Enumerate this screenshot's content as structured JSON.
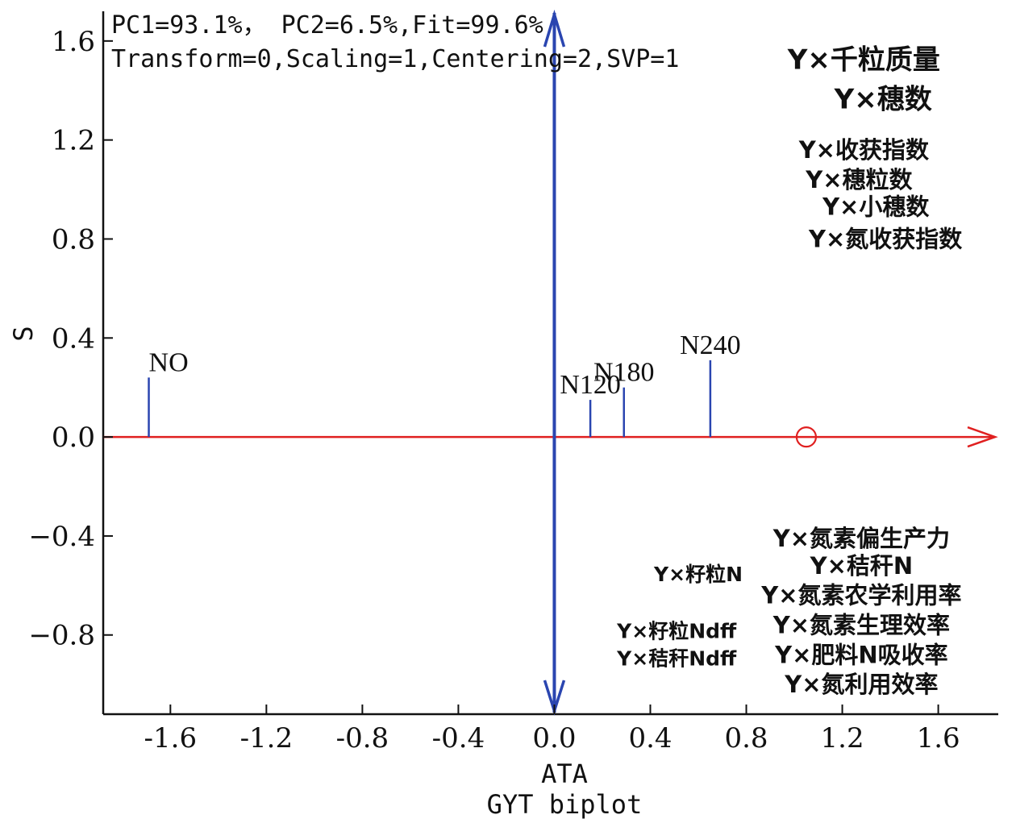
{
  "chart_data": {
    "type": "scatter",
    "title": "GYT biplot",
    "xlabel": "ATA",
    "ylabel": "S",
    "xlim": [
      -1.88,
      1.85
    ],
    "ylim": [
      -1.12,
      1.72
    ],
    "x_ticks": [
      -1.6,
      -1.2,
      -0.8,
      -0.4,
      0.0,
      0.4,
      0.8,
      1.2,
      1.6
    ],
    "x_tick_labels": [
      "-1.6",
      "-1.2",
      "-0.8",
      "-0.4",
      "0.0",
      "0.4",
      "0.8",
      "1.2",
      "1.6"
    ],
    "y_ticks": [
      -0.8,
      -0.4,
      0.0,
      0.4,
      0.8,
      1.2,
      1.6
    ],
    "y_tick_labels": [
      "−0.8",
      "−0.4",
      "0.0",
      "0.4",
      "0.8",
      "1.2",
      "1.6"
    ],
    "info_lines": [
      "PC1=93.1%， PC2=6.5%,Fit=99.6%",
      "Transform=0,Scaling=1,Centering=2,SVP=1"
    ],
    "ata_marker": {
      "x": 1.05,
      "y": 0.0
    },
    "colors": {
      "ata_axis": "#e02020",
      "ordinate": "#2a45b0",
      "frame": "#111111"
    },
    "genotypes": [
      {
        "label": "NO",
        "x": -1.69,
        "y": 0.24
      },
      {
        "label": "N120",
        "x": 0.15,
        "y": 0.15
      },
      {
        "label": "N180",
        "x": 0.29,
        "y": 0.2
      },
      {
        "label": "N240",
        "x": 0.65,
        "y": 0.31
      }
    ],
    "traits": [
      {
        "label": "Y×千粒质量",
        "x": 1.29,
        "y": 1.52,
        "size": "large"
      },
      {
        "label": "Y×穗数",
        "x": 1.37,
        "y": 1.36,
        "size": "large"
      },
      {
        "label": "Y×收获指数",
        "x": 1.29,
        "y": 1.16,
        "size": "medium"
      },
      {
        "label": "Y×穗粒数",
        "x": 1.27,
        "y": 1.04,
        "size": "medium"
      },
      {
        "label": "Y×小穗数",
        "x": 1.34,
        "y": 0.93,
        "size": "medium"
      },
      {
        "label": "Y×氮收获指数",
        "x": 1.38,
        "y": 0.8,
        "size": "medium"
      },
      {
        "label": "Y×氮素偏生产力",
        "x": 1.28,
        "y": -0.41,
        "size": "medium"
      },
      {
        "label": "Y×秸秆N",
        "x": 1.28,
        "y": -0.52,
        "size": "medium"
      },
      {
        "label": "Y×籽粒N",
        "x": 0.6,
        "y": -0.55,
        "size": "small"
      },
      {
        "label": "Y×氮素农学利用率",
        "x": 1.28,
        "y": -0.64,
        "size": "medium"
      },
      {
        "label": "Y×氮素生理效率",
        "x": 1.28,
        "y": -0.76,
        "size": "medium"
      },
      {
        "label": "Y×籽粒Ndff",
        "x": 0.51,
        "y": -0.78,
        "size": "small"
      },
      {
        "label": "Y×秸秆Ndff",
        "x": 0.51,
        "y": -0.89,
        "size": "small"
      },
      {
        "label": "Y×肥料N吸收率",
        "x": 1.28,
        "y": -0.88,
        "size": "medium"
      },
      {
        "label": "Y×氮利用效率",
        "x": 1.28,
        "y": -1.0,
        "size": "medium"
      }
    ]
  }
}
